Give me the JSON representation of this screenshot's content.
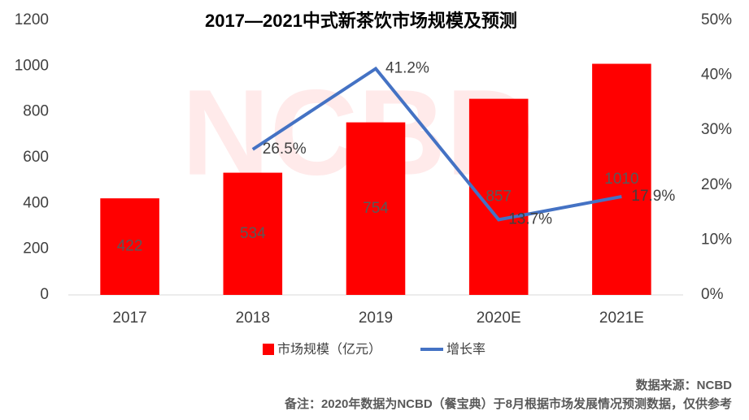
{
  "chart_data": {
    "type": "bar_line",
    "title": "2017—2021中式新茶饮市场规模及预测",
    "watermark": "NCBD",
    "categories": [
      "2017",
      "2018",
      "2019",
      "2020E",
      "2021E"
    ],
    "series": [
      {
        "name": "市场规模（亿元）",
        "type": "bar",
        "color": "#ff0000",
        "values": [
          422,
          534,
          754,
          857,
          1010
        ]
      },
      {
        "name": "增长率",
        "type": "line",
        "axis": "y2",
        "color": "#4472c4",
        "values": [
          null,
          26.5,
          41.2,
          13.7,
          17.9
        ],
        "value_labels": [
          null,
          "26.5%",
          "41.2%",
          "13.7%",
          "17.9%"
        ]
      }
    ],
    "ylim": [
      0,
      1200
    ],
    "yticks": [
      0,
      200,
      400,
      600,
      800,
      1000,
      1200
    ],
    "y2lim": [
      0,
      50
    ],
    "y2ticks": [
      {
        "value": 0,
        "label": "0%"
      },
      {
        "value": 10,
        "label": "10%"
      },
      {
        "value": 20,
        "label": "20%"
      },
      {
        "value": 30,
        "label": "30%"
      },
      {
        "value": 40,
        "label": "40%"
      },
      {
        "value": 50,
        "label": "50%"
      }
    ],
    "legend": "bottom",
    "source": "数据来源：NCBD",
    "note": "备注：2020年数据为NCBD（餐宝典）于8月根据市场发展情况预测数据，仅供参考"
  }
}
